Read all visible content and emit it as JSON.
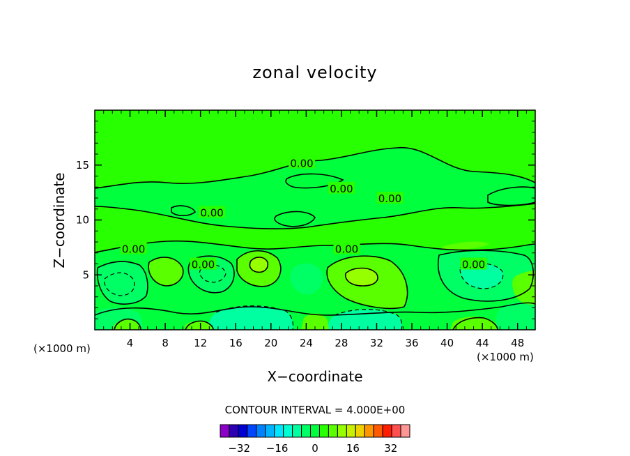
{
  "chart_data": {
    "type": "heatmap",
    "title": "zonal velocity",
    "xlabel": "X−coordinate",
    "ylabel": "Z−coordinate",
    "x_unit_left": "(×1000 m)",
    "x_unit_right": "(×1000 m)",
    "xlim": [
      0,
      50
    ],
    "ylim": [
      0,
      20
    ],
    "xticks": [
      4,
      8,
      12,
      16,
      20,
      24,
      28,
      32,
      36,
      40,
      44,
      48
    ],
    "yticks": [
      5,
      10,
      15
    ],
    "contour_interval_label": "CONTOUR INTERVAL = 4.000E+00",
    "contour_interval": 4.0,
    "contour_labels": [
      {
        "text": "0.00",
        "x": 23.5,
        "y": 15.2
      },
      {
        "text": "0.00",
        "x": 28.0,
        "y": 12.9
      },
      {
        "text": "0.00",
        "x": 33.5,
        "y": 12.0
      },
      {
        "text": "0.00",
        "x": 13.3,
        "y": 10.7
      },
      {
        "text": "0.00",
        "x": 4.4,
        "y": 7.4
      },
      {
        "text": "0.00",
        "x": 28.6,
        "y": 7.4
      },
      {
        "text": "0.00",
        "x": 12.3,
        "y": 6.0
      },
      {
        "text": "0.00",
        "x": 43.0,
        "y": 6.0
      }
    ],
    "colorbar": {
      "levels": [
        -40,
        -36,
        -32,
        -28,
        -24,
        -20,
        -16,
        -12,
        -8,
        -4,
        0,
        4,
        8,
        12,
        16,
        20,
        24,
        28,
        32,
        36,
        40
      ],
      "colors": [
        "#8c00c8",
        "#2d00b4",
        "#0000d2",
        "#0046ff",
        "#0082ff",
        "#00b4ff",
        "#00e6ff",
        "#00ffd2",
        "#00ffa0",
        "#00ff64",
        "#00ff3c",
        "#28ff00",
        "#5aff00",
        "#96ff00",
        "#c8f000",
        "#f0d200",
        "#ff9600",
        "#ff5a00",
        "#ff1e00",
        "#ff5050",
        "#ff9696"
      ],
      "tick_labels": [
        "−32",
        "−16",
        "0",
        "16",
        "32"
      ],
      "tick_values": [
        -32,
        -16,
        0,
        16,
        32
      ]
    }
  }
}
